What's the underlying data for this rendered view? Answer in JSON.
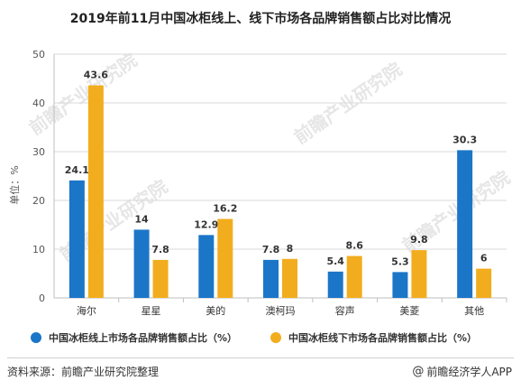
{
  "title": "2019年前11月中国冰柜线上、线下市场各品牌销售额占比对比情况",
  "source": "资料来源：前瞻产业研究院整理",
  "brand": {
    "icon": "weibo-at-icon",
    "symbol": "@",
    "text": "前瞻经济学人APP"
  },
  "watermark": "前瞻产业研究院",
  "colors": {
    "online": "#1b76c8",
    "offline": "#f2ad1e",
    "grid": "#d9d9d9",
    "axis": "#bfbfbf"
  },
  "chart_data": {
    "type": "bar",
    "title": "2019年前11月中国冰柜线上、线下市场各品牌销售额占比对比情况",
    "ylabel": "单位：%",
    "xlabel": "",
    "ylim": [
      0,
      50
    ],
    "yticks": [
      0,
      10,
      20,
      30,
      40,
      50
    ],
    "grid": true,
    "legend_position": "bottom",
    "categories": [
      "海尔",
      "星星",
      "美的",
      "澳柯玛",
      "容声",
      "美菱",
      "其他"
    ],
    "series": [
      {
        "name": "中国冰柜线上市场各品牌销售额占比（%）",
        "values": [
          24.1,
          14,
          12.9,
          7.8,
          5.4,
          5.3,
          30.3
        ],
        "labels": [
          "24.1",
          "14",
          "12.9",
          "7.8",
          "5.4",
          "5.3",
          "30.3"
        ]
      },
      {
        "name": "中国冰柜线下市场各品牌销售额占比（%）",
        "values": [
          43.6,
          7.8,
          16.2,
          8,
          8.6,
          9.8,
          6
        ],
        "labels": [
          "43.6",
          "7.8",
          "16.2",
          "8",
          "8.6",
          "9.8",
          "6"
        ]
      }
    ]
  }
}
